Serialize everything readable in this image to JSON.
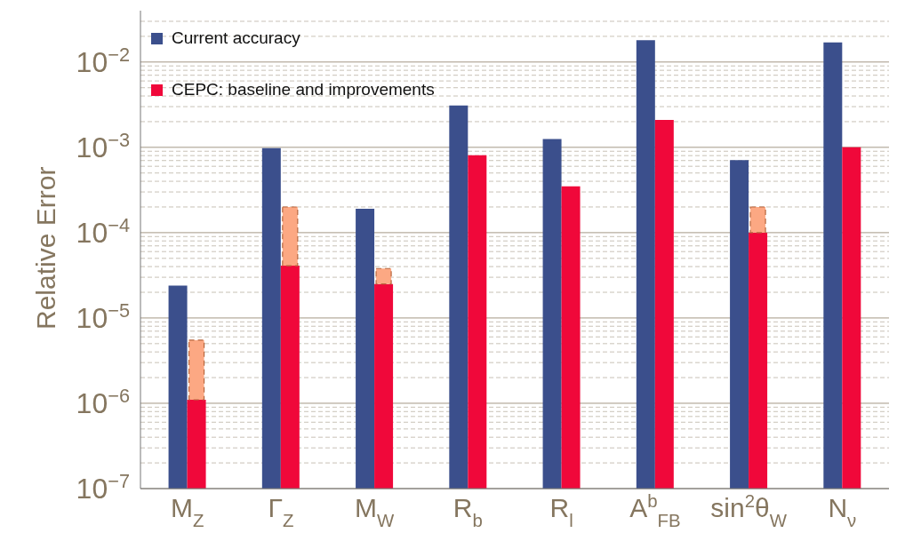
{
  "chart_data": {
    "type": "bar",
    "ylabel": "Relative Error",
    "log": "y",
    "grid": "y",
    "legend": "top left",
    "categories": [
      "M$_{Z}$",
      "Γ$_{Z}$",
      "M$_{W}$",
      "R$_{b}$",
      "R$_{l}$",
      "A$^{b}$$_{FB}$",
      "sin$^{2}$θ$_{W}$",
      "N$_{ν}$"
    ],
    "series": [
      {
        "name": "Current accuracy",
        "color": "#3b4f8c",
        "values": [
          2.4e-05,
          0.00098,
          0.00019,
          0.0031,
          0.00125,
          0.018,
          0.00071,
          0.017
        ]
      },
      {
        "name": "CEPC: baseline and improvements",
        "color": "#f0083a",
        "values": [
          1.1e-06,
          4.1e-05,
          2.5e-05,
          0.00081,
          0.00035,
          0.0021,
          0.0001,
          0.001
        ]
      },
      {
        "color": "#fca883",
        "line_style": "dashed",
        "base": [
          1.1e-06,
          4.1e-05,
          2.5e-05,
          null,
          null,
          null,
          0.0001,
          null
        ],
        "values": [
          4.4e-06,
          0.000159,
          1.3e-05,
          null,
          null,
          null,
          0.0001,
          null
        ]
      }
    ],
    "ylim": [
      1e-07,
      0.04
    ],
    "yticks": [
      {
        "value": 1e-07,
        "label": "10$^{−7}$"
      },
      {
        "value": 2e-07,
        "label": null
      },
      {
        "value": 3e-07,
        "label": null
      },
      {
        "value": 4e-07,
        "label": null
      },
      {
        "value": 5e-07,
        "label": null
      },
      {
        "value": 6e-07,
        "label": null
      },
      {
        "value": 7e-07,
        "label": null
      },
      {
        "value": 8e-07,
        "label": null
      },
      {
        "value": 9e-07,
        "label": null
      },
      {
        "value": 1e-06,
        "label": "10$^{−6}$"
      },
      {
        "value": 2e-06,
        "label": null
      },
      {
        "value": 3e-06,
        "label": null
      },
      {
        "value": 4e-06,
        "label": null
      },
      {
        "value": 5e-06,
        "label": null
      },
      {
        "value": 6e-06,
        "label": null
      },
      {
        "value": 7e-06,
        "label": null
      },
      {
        "value": 8e-06,
        "label": null
      },
      {
        "value": 9e-06,
        "label": null
      },
      {
        "value": 1e-05,
        "label": "10$^{−5}$"
      },
      {
        "value": 2e-05,
        "label": null
      },
      {
        "value": 3e-05,
        "label": null
      },
      {
        "value": 4e-05,
        "label": null
      },
      {
        "value": 5e-05,
        "label": null
      },
      {
        "value": 6e-05,
        "label": null
      },
      {
        "value": 7e-05,
        "label": null
      },
      {
        "value": 8e-05,
        "label": null
      },
      {
        "value": 9e-05,
        "label": null
      },
      {
        "value": 0.0001,
        "label": "10$^{−4}$"
      },
      {
        "value": 0.0002,
        "label": null
      },
      {
        "value": 0.0003,
        "label": null
      },
      {
        "value": 0.0004,
        "label": null
      },
      {
        "value": 0.0005,
        "label": null
      },
      {
        "value": 0.0006,
        "label": null
      },
      {
        "value": 0.0007,
        "label": null
      },
      {
        "value": 0.0008,
        "label": null
      },
      {
        "value": 0.0009,
        "label": null
      },
      {
        "value": 0.001,
        "label": "10$^{−3}$"
      },
      {
        "value": 0.002,
        "label": null
      },
      {
        "value": 0.003,
        "label": null
      },
      {
        "value": 0.004,
        "label": null
      },
      {
        "value": 0.005,
        "label": null
      },
      {
        "value": 0.006,
        "label": null
      },
      {
        "value": 0.007,
        "label": null
      },
      {
        "value": 0.008,
        "label": null
      },
      {
        "value": 0.009,
        "label": null
      },
      {
        "value": 0.01,
        "label": "10$^{−2}$"
      },
      {
        "value": 0.02,
        "label": null
      },
      {
        "value": 0.03,
        "label": null
      }
    ]
  }
}
